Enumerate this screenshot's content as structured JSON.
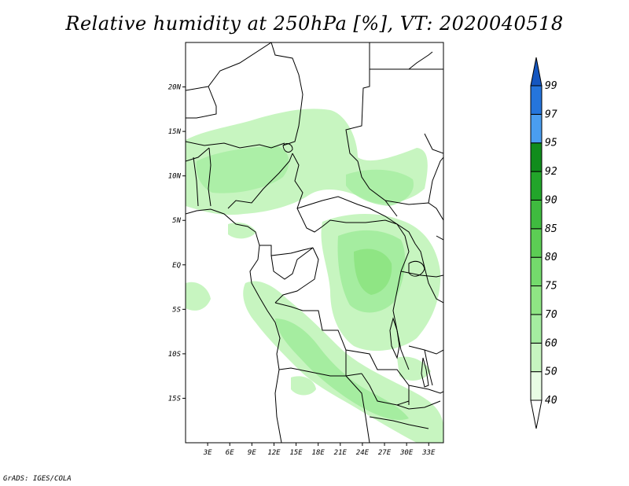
{
  "title": "Relative humidity at 250hPa [%], VT: 2020040518",
  "credit": "GrADS: IGES/COLA",
  "map": {
    "lon_range": [
      0,
      35
    ],
    "lat_range": [
      -20,
      25
    ],
    "lat_ticks": [
      {
        "value": 20,
        "label": "20N"
      },
      {
        "value": 15,
        "label": "15N"
      },
      {
        "value": 10,
        "label": "10N"
      },
      {
        "value": 5,
        "label": "5N"
      },
      {
        "value": 0,
        "label": "EQ"
      },
      {
        "value": -5,
        "label": "5S"
      },
      {
        "value": -10,
        "label": "10S"
      },
      {
        "value": -15,
        "label": "15S"
      }
    ],
    "lon_ticks": [
      {
        "value": 3,
        "label": "3E"
      },
      {
        "value": 6,
        "label": "6E"
      },
      {
        "value": 9,
        "label": "9E"
      },
      {
        "value": 12,
        "label": "12E"
      },
      {
        "value": 15,
        "label": "15E"
      },
      {
        "value": 18,
        "label": "18E"
      },
      {
        "value": 21,
        "label": "21E"
      },
      {
        "value": 24,
        "label": "24E"
      },
      {
        "value": 27,
        "label": "27E"
      },
      {
        "value": 30,
        "label": "30E"
      },
      {
        "value": 33,
        "label": "33E"
      }
    ]
  },
  "colorbar": {
    "levels": [
      "40",
      "50",
      "60",
      "70",
      "75",
      "80",
      "85",
      "90",
      "92",
      "95",
      "97",
      "99"
    ],
    "colors": [
      "#ffffff",
      "#e8fce4",
      "#c7f5c0",
      "#a5eda0",
      "#8fe584",
      "#74da6c",
      "#5ccd54",
      "#3fbb3f",
      "#22a52a",
      "#108c1c",
      "#4a9df0",
      "#2575dc",
      "#1456c0"
    ]
  }
}
